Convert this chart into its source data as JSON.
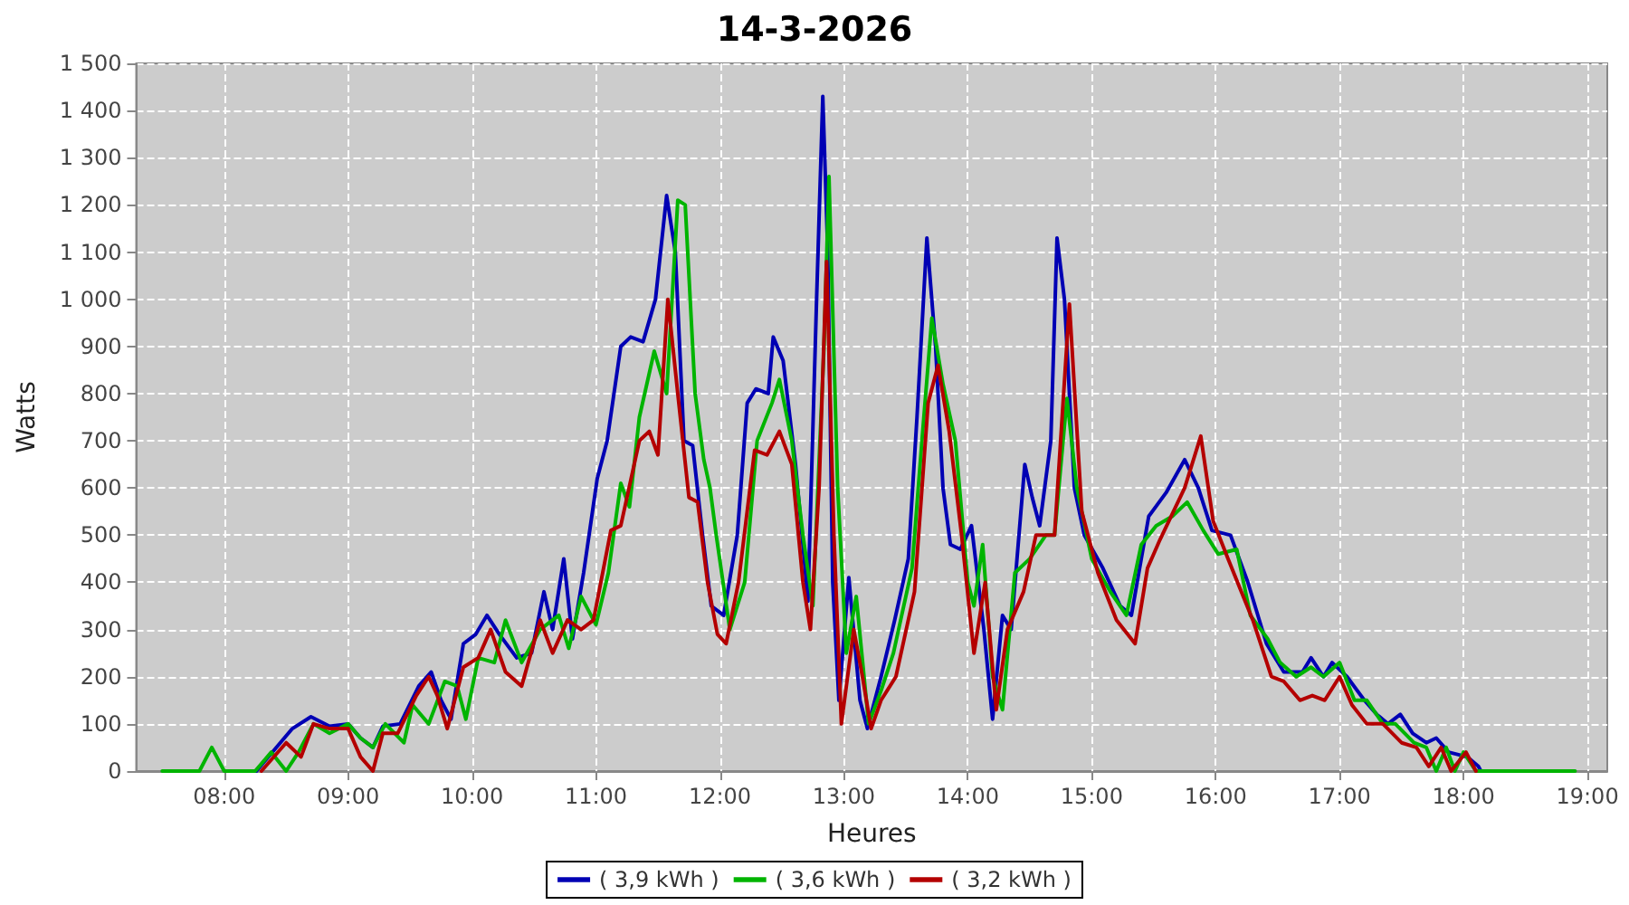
{
  "chart_data": {
    "type": "line",
    "title": "14-3-2026",
    "xlabel": "Heures",
    "ylabel": "Watts",
    "grid": true,
    "legend": "bottom",
    "marker": "none",
    "line_style": "solid",
    "xlim": [
      7.29,
      19.16
    ],
    "ylim": [
      0,
      1500
    ],
    "xticks": [
      {
        "value": 8,
        "label": "08:00"
      },
      {
        "value": 9,
        "label": "09:00"
      },
      {
        "value": 10,
        "label": "10:00"
      },
      {
        "value": 11,
        "label": "11:00"
      },
      {
        "value": 12,
        "label": "12:00"
      },
      {
        "value": 13,
        "label": "13:00"
      },
      {
        "value": 14,
        "label": "14:00"
      },
      {
        "value": 15,
        "label": "15:00"
      },
      {
        "value": 16,
        "label": "16:00"
      },
      {
        "value": 17,
        "label": "17:00"
      },
      {
        "value": 18,
        "label": "18:00"
      },
      {
        "value": 19,
        "label": "19:00"
      }
    ],
    "yticks": [
      0,
      100,
      200,
      300,
      400,
      500,
      600,
      700,
      800,
      900,
      {
        "value": 1000,
        "label": "1 000"
      },
      {
        "value": 1100,
        "label": "1 100"
      },
      {
        "value": 1200,
        "label": "1 200"
      },
      {
        "value": 1300,
        "label": "1 300"
      },
      {
        "value": 1400,
        "label": "1 400"
      },
      {
        "value": 1500,
        "label": "1 500"
      }
    ],
    "series": [
      {
        "name": "( 3,9 kWh )",
        "color": "#0000b4",
        "x": [
          8.26,
          8.55,
          8.7,
          8.85,
          9.0,
          9.1,
          9.2,
          9.28,
          9.42,
          9.57,
          9.67,
          9.75,
          9.83,
          9.93,
          10.03,
          10.12,
          10.22,
          10.36,
          10.48,
          10.58,
          10.65,
          10.74,
          10.81,
          10.9,
          11.01,
          11.09,
          11.2,
          11.28,
          11.38,
          11.48,
          11.57,
          11.64,
          11.71,
          11.78,
          11.86,
          11.93,
          12.03,
          12.14,
          12.22,
          12.29,
          12.39,
          12.43,
          12.51,
          12.61,
          12.68,
          12.71,
          12.78,
          12.83,
          12.87,
          12.91,
          12.96,
          13.04,
          13.13,
          13.19,
          13.3,
          13.41,
          13.52,
          13.59,
          13.67,
          13.74,
          13.8,
          13.86,
          13.94,
          14.03,
          14.13,
          14.2,
          14.28,
          14.35,
          14.46,
          14.52,
          14.58,
          14.67,
          14.72,
          14.78,
          14.86,
          14.94,
          15.09,
          15.23,
          15.32,
          15.46,
          15.6,
          15.75,
          15.86,
          15.97,
          16.12,
          16.26,
          16.41,
          16.55,
          16.7,
          16.77,
          16.87,
          16.94,
          17.06,
          17.2,
          17.3,
          17.39,
          17.49,
          17.59,
          17.7,
          17.78,
          17.88,
          18.03,
          18.12,
          18.14
        ],
        "values": [
          0,
          90,
          115,
          95,
          100,
          70,
          50,
          95,
          100,
          180,
          210,
          150,
          110,
          270,
          290,
          330,
          290,
          240,
          250,
          380,
          300,
          450,
          280,
          420,
          620,
          700,
          900,
          920,
          910,
          1000,
          1220,
          1100,
          700,
          690,
          500,
          350,
          330,
          500,
          780,
          810,
          800,
          920,
          870,
          650,
          450,
          360,
          1000,
          1430,
          1100,
          400,
          150,
          410,
          150,
          90,
          200,
          320,
          450,
          750,
          1130,
          900,
          600,
          480,
          470,
          520,
          300,
          110,
          330,
          300,
          650,
          580,
          520,
          700,
          1130,
          1000,
          600,
          500,
          430,
          350,
          330,
          540,
          590,
          660,
          600,
          510,
          500,
          400,
          270,
          210,
          210,
          240,
          200,
          230,
          200,
          150,
          120,
          100,
          120,
          80,
          60,
          70,
          40,
          30,
          10,
          0
        ]
      },
      {
        "name": "( 3,6 kWh )",
        "color": "#00b400",
        "x": [
          7.5,
          7.8,
          7.9,
          8.0,
          8.25,
          8.38,
          8.5,
          8.6,
          8.72,
          8.85,
          9.0,
          9.1,
          9.2,
          9.3,
          9.45,
          9.52,
          9.65,
          9.78,
          9.88,
          9.95,
          10.05,
          10.18,
          10.27,
          10.4,
          10.55,
          10.7,
          10.78,
          10.88,
          11.0,
          11.1,
          11.2,
          11.27,
          11.35,
          11.47,
          11.57,
          11.66,
          11.72,
          11.8,
          11.87,
          11.92,
          11.97,
          12.08,
          12.2,
          12.3,
          12.42,
          12.48,
          12.58,
          12.67,
          12.75,
          12.84,
          12.88,
          12.95,
          13.02,
          13.1,
          13.2,
          13.3,
          13.4,
          13.55,
          13.63,
          13.71,
          13.8,
          13.9,
          14.0,
          14.05,
          14.12,
          14.2,
          14.28,
          14.38,
          14.5,
          14.63,
          14.7,
          14.8,
          14.88,
          15.0,
          15.15,
          15.28,
          15.4,
          15.52,
          15.65,
          15.77,
          15.9,
          16.02,
          16.17,
          16.28,
          16.42,
          16.52,
          16.65,
          16.77,
          16.87,
          17.0,
          17.12,
          17.22,
          17.35,
          17.45,
          17.6,
          17.7,
          17.78,
          17.86,
          17.93,
          18.0,
          18.1,
          18.2,
          18.9
        ],
        "values": [
          0,
          0,
          50,
          0,
          0,
          40,
          0,
          40,
          100,
          80,
          100,
          70,
          50,
          100,
          60,
          140,
          100,
          190,
          180,
          110,
          240,
          230,
          320,
          230,
          300,
          330,
          260,
          370,
          310,
          420,
          610,
          560,
          750,
          890,
          800,
          1210,
          1200,
          800,
          660,
          600,
          500,
          300,
          400,
          700,
          780,
          830,
          700,
          500,
          350,
          900,
          1260,
          600,
          250,
          370,
          100,
          170,
          250,
          430,
          700,
          960,
          820,
          700,
          400,
          350,
          480,
          200,
          130,
          420,
          450,
          500,
          500,
          790,
          600,
          450,
          380,
          330,
          480,
          520,
          540,
          570,
          510,
          460,
          470,
          330,
          280,
          230,
          200,
          220,
          200,
          230,
          150,
          150,
          100,
          100,
          60,
          50,
          0,
          50,
          0,
          40,
          0,
          0,
          0
        ]
      },
      {
        "name": "( 3,2 kWh )",
        "color": "#b40000",
        "x": [
          8.3,
          8.5,
          8.62,
          8.72,
          8.85,
          9.0,
          9.1,
          9.2,
          9.28,
          9.4,
          9.55,
          9.65,
          9.72,
          9.8,
          9.93,
          10.05,
          10.15,
          10.27,
          10.4,
          10.55,
          10.65,
          10.77,
          10.88,
          10.98,
          11.12,
          11.2,
          11.35,
          11.43,
          11.5,
          11.58,
          11.66,
          11.75,
          11.82,
          11.9,
          11.98,
          12.05,
          12.15,
          12.28,
          12.38,
          12.48,
          12.58,
          12.67,
          12.73,
          12.8,
          12.86,
          12.92,
          12.98,
          13.08,
          13.15,
          13.22,
          13.3,
          13.42,
          13.57,
          13.68,
          13.76,
          13.85,
          13.95,
          14.05,
          14.14,
          14.23,
          14.32,
          14.45,
          14.55,
          14.7,
          14.82,
          14.92,
          15.05,
          15.2,
          15.35,
          15.45,
          15.55,
          15.75,
          15.88,
          15.98,
          16.1,
          16.3,
          16.45,
          16.55,
          16.68,
          16.78,
          16.88,
          17.0,
          17.1,
          17.22,
          17.35,
          17.5,
          17.62,
          17.72,
          17.82,
          17.9,
          18.02,
          18.1
        ],
        "values": [
          0,
          60,
          30,
          100,
          90,
          90,
          30,
          0,
          80,
          80,
          160,
          200,
          160,
          90,
          220,
          240,
          300,
          210,
          180,
          320,
          250,
          320,
          300,
          320,
          510,
          520,
          700,
          720,
          670,
          1000,
          800,
          580,
          570,
          400,
          290,
          270,
          400,
          680,
          670,
          720,
          650,
          400,
          300,
          600,
          1080,
          500,
          100,
          300,
          200,
          90,
          150,
          200,
          380,
          780,
          860,
          720,
          500,
          250,
          400,
          130,
          300,
          380,
          500,
          500,
          990,
          550,
          420,
          320,
          270,
          430,
          490,
          600,
          710,
          530,
          450,
          320,
          200,
          190,
          150,
          160,
          150,
          200,
          140,
          100,
          100,
          60,
          50,
          10,
          50,
          0,
          40,
          0
        ]
      }
    ]
  }
}
